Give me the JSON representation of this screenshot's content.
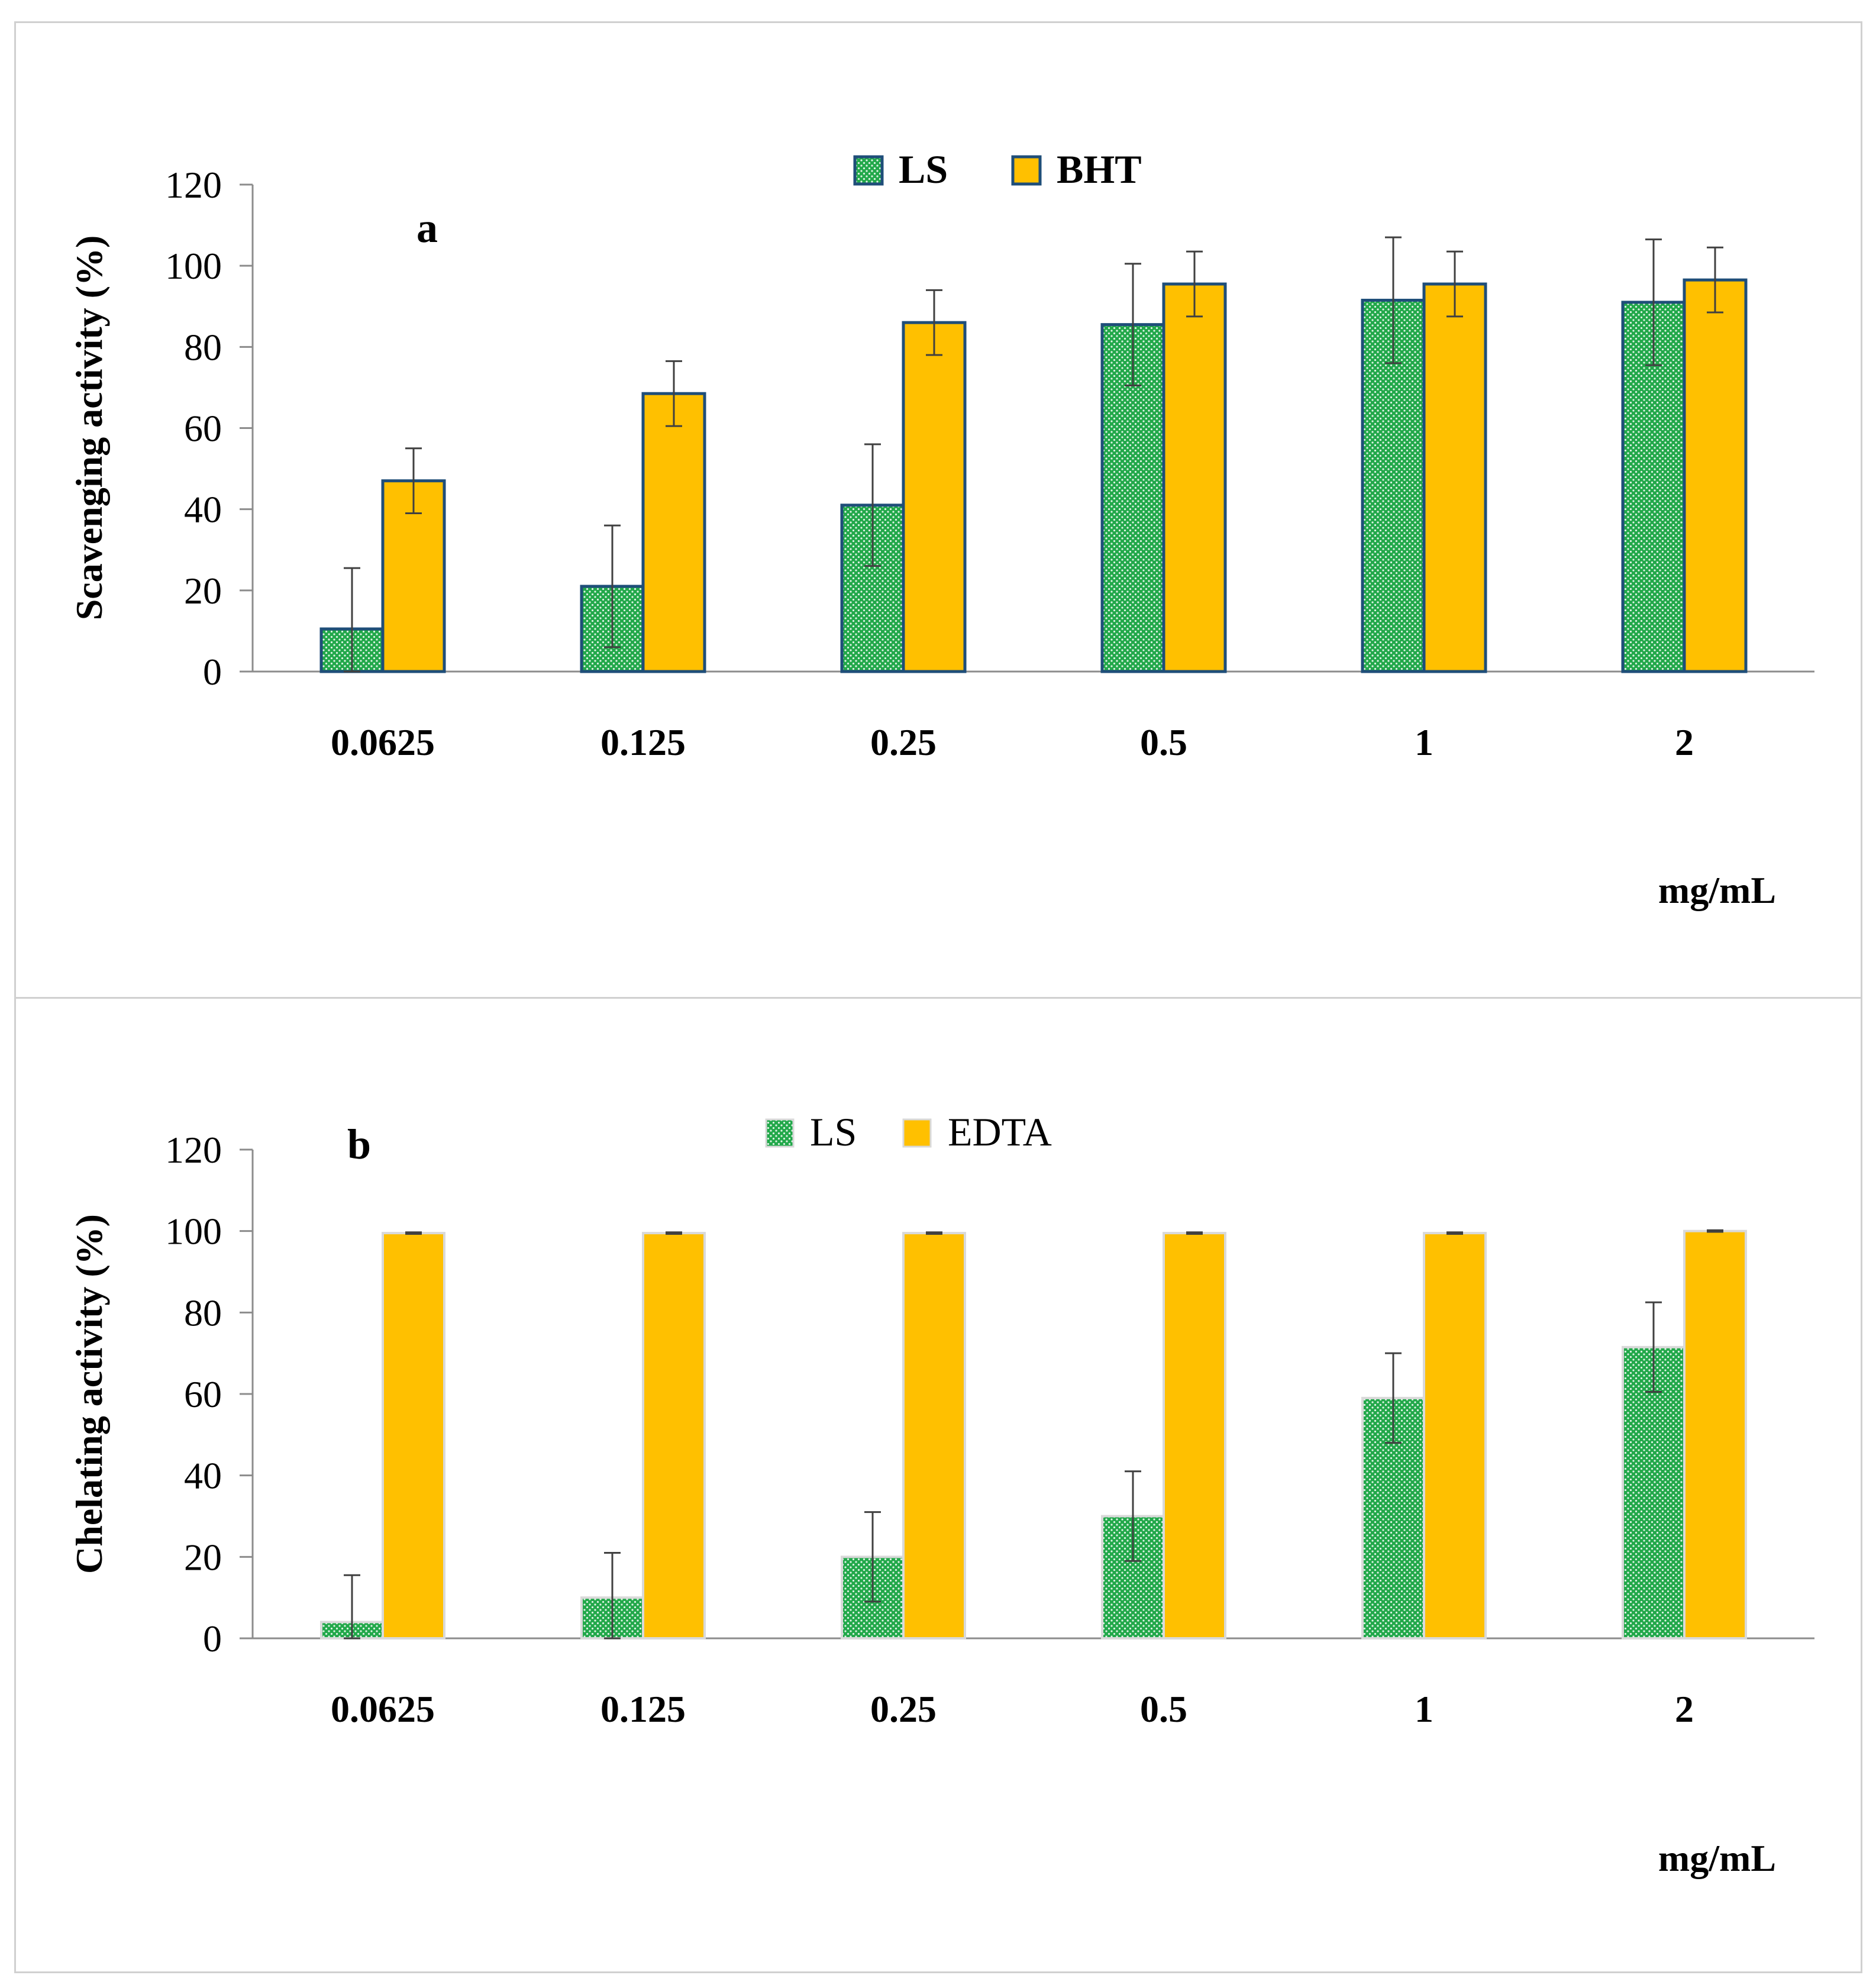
{
  "chart_data": [
    {
      "type": "bar",
      "panel_label": "a",
      "ylabel": "Scavenging activity (%)",
      "xlabel": "mg/mL",
      "ylim": [
        0,
        120
      ],
      "yticks": [
        0,
        20,
        40,
        60,
        80,
        100,
        120
      ],
      "grid": false,
      "legend_position": "top-center",
      "categories": [
        "0.0625",
        "0.125",
        "0.25",
        "0.5",
        "1",
        "2"
      ],
      "series": [
        {
          "name": "LS",
          "color": "#22a84a",
          "pattern": "dotted",
          "edge": "#1f4e79",
          "values": [
            10.5,
            21,
            41,
            85.5,
            91.5,
            91
          ],
          "errors": [
            15,
            15,
            15,
            15,
            15.5,
            15.5
          ]
        },
        {
          "name": "BHT",
          "color": "#ffc000",
          "pattern": "solid",
          "edge": "#1f4e79",
          "values": [
            47,
            68.5,
            86,
            95.5,
            95.5,
            96.5
          ],
          "errors": [
            8,
            8,
            8,
            8,
            8,
            8
          ]
        }
      ]
    },
    {
      "type": "bar",
      "panel_label": "b",
      "ylabel": "Chelating activity (%)",
      "xlabel": "mg/mL",
      "ylim": [
        0,
        120
      ],
      "yticks": [
        0,
        20,
        40,
        60,
        80,
        100,
        120
      ],
      "grid": false,
      "legend_position": "top-center",
      "categories": [
        "0.0625",
        "0.125",
        "0.25",
        "0.5",
        "1",
        "2"
      ],
      "series": [
        {
          "name": "LS",
          "color": "#22a84a",
          "pattern": "dotted",
          "edge": "#d9d9d9",
          "values": [
            4,
            10,
            20,
            30,
            59,
            71.5
          ],
          "errors": [
            11.5,
            11,
            11,
            11,
            11,
            11
          ]
        },
        {
          "name": "EDTA",
          "color": "#ffc000",
          "pattern": "solid",
          "edge": "#d9d9d9",
          "values": [
            99.5,
            99.5,
            99.5,
            99.5,
            99.5,
            100
          ],
          "errors": [
            0.2,
            0.2,
            0.2,
            0.2,
            0.2,
            0.2
          ]
        }
      ]
    }
  ]
}
